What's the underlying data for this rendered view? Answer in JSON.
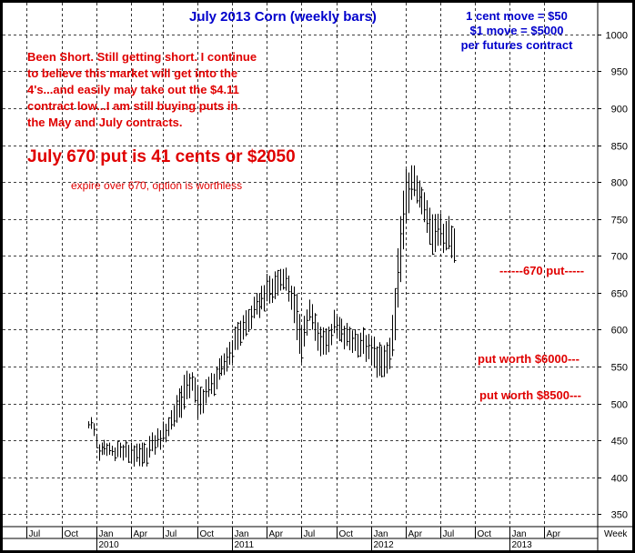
{
  "chart_data": {
    "type": "ohlc",
    "title": "July 2013 Corn (weekly bars)",
    "info_lines": [
      "1 cent move = $50",
      "$1 move = $5000",
      "per futures contract"
    ],
    "xlabel": "Week",
    "ylim": [
      333,
      1043
    ],
    "y_ticks": [
      350,
      400,
      450,
      500,
      550,
      600,
      650,
      700,
      750,
      800,
      850,
      900,
      950,
      1000
    ],
    "x_month_ticks": [
      {
        "label": "Jul",
        "week": -29
      },
      {
        "label": "Oct",
        "week": -16
      },
      {
        "label": "Jan",
        "week": -3
      },
      {
        "label": "Apr",
        "week": 10
      },
      {
        "label": "Jul",
        "week": 22
      },
      {
        "label": "Oct",
        "week": 35
      },
      {
        "label": "Jan",
        "week": 48
      },
      {
        "label": "Apr",
        "week": 61
      },
      {
        "label": "Jul",
        "week": 74
      },
      {
        "label": "Oct",
        "week": 87
      },
      {
        "label": "Jan",
        "week": 100
      },
      {
        "label": "Apr",
        "week": 113
      },
      {
        "label": "Jul",
        "week": 126
      },
      {
        "label": "Oct",
        "week": 139
      },
      {
        "label": "Jan",
        "week": 152
      },
      {
        "label": "Apr",
        "week": 165
      }
    ],
    "year_labels": [
      {
        "label": "2010",
        "week": -3
      },
      {
        "label": "2011",
        "week": 48
      },
      {
        "label": "2012",
        "week": 100
      },
      {
        "label": "2013",
        "week": 152
      }
    ],
    "x_range_weeks": [
      -38,
      185
    ],
    "anchors": [
      [
        -6,
        470,
        481
      ],
      [
        -4,
        455,
        475
      ],
      [
        -2,
        425,
        445
      ],
      [
        2,
        430,
        445
      ],
      [
        6,
        425,
        445
      ],
      [
        10,
        420,
        445
      ],
      [
        14,
        410,
        440
      ],
      [
        18,
        430,
        455
      ],
      [
        22,
        445,
        470
      ],
      [
        26,
        470,
        500
      ],
      [
        30,
        490,
        540
      ],
      [
        33,
        520,
        545
      ],
      [
        35,
        475,
        520
      ],
      [
        38,
        500,
        530
      ],
      [
        42,
        520,
        550
      ],
      [
        46,
        545,
        575
      ],
      [
        50,
        575,
        610
      ],
      [
        53,
        590,
        625
      ],
      [
        56,
        610,
        640
      ],
      [
        60,
        630,
        665
      ],
      [
        64,
        640,
        675
      ],
      [
        67,
        660,
        690
      ],
      [
        70,
        630,
        665
      ],
      [
        72,
        580,
        640
      ],
      [
        74,
        560,
        610
      ],
      [
        77,
        610,
        640
      ],
      [
        80,
        570,
        610
      ],
      [
        83,
        565,
        600
      ],
      [
        86,
        590,
        620
      ],
      [
        90,
        575,
        605
      ],
      [
        94,
        570,
        600
      ],
      [
        98,
        560,
        595
      ],
      [
        101,
        545,
        585
      ],
      [
        104,
        530,
        575
      ],
      [
        107,
        545,
        590
      ],
      [
        109,
        580,
        650
      ],
      [
        111,
        670,
        760
      ],
      [
        113,
        740,
        810
      ],
      [
        115,
        780,
        825
      ],
      [
        117,
        770,
        805
      ],
      [
        119,
        755,
        790
      ],
      [
        121,
        730,
        775
      ],
      [
        123,
        705,
        760
      ],
      [
        125,
        715,
        760
      ],
      [
        127,
        705,
        745
      ],
      [
        129,
        715,
        758
      ],
      [
        131,
        690,
        735
      ]
    ]
  },
  "annotations": {
    "short_note": "Been Short. Still getting short. I continue\nto believe this market will get into the\n4's...and easily may take out the $4.11\ncontract low...I am still buying puts in\nthe May and July contracts.",
    "put_headline": "July 670 put is 41 cents or $2050",
    "expire_note": "expire over 670, option is worthless",
    "put_670": "------670 put-----",
    "put_6000": "put worth $6000---",
    "put_8500": "put worth $8500---"
  },
  "colors": {
    "background": "#ffffff",
    "frame": "#000000",
    "grid": "#000000",
    "title": "#0000cc",
    "annotation": "#e00000",
    "bars": "#000000"
  }
}
